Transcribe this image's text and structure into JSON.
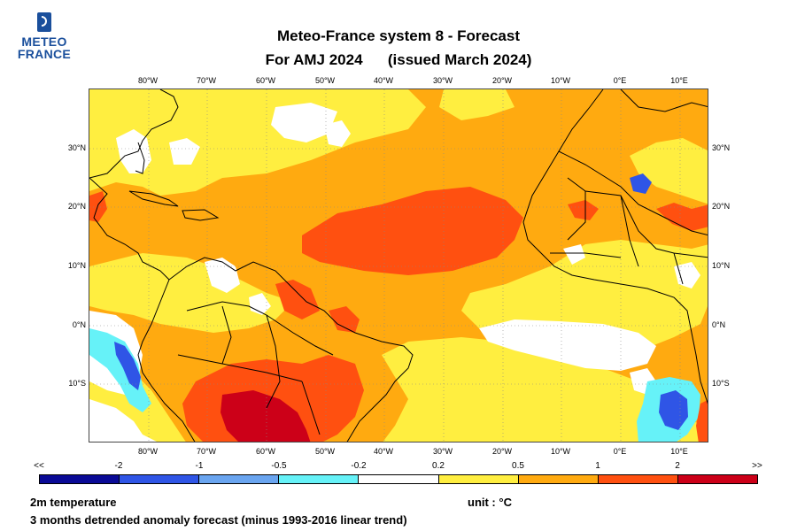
{
  "logo": {
    "line1": "METEO",
    "line2": "FRANCE"
  },
  "header": {
    "title_line1": "Meteo-France system 8  -  Forecast",
    "title_period": "For AMJ 2024",
    "title_issued": "(issued March 2024)"
  },
  "map": {
    "lon_labels": [
      "80°W",
      "70°W",
      "60°W",
      "50°W",
      "40°W",
      "30°W",
      "20°W",
      "10°W",
      "0°E",
      "10°E"
    ],
    "lat_labels": [
      "30°N",
      "20°N",
      "10°N",
      "0°N",
      "10°S"
    ]
  },
  "legend": {
    "labels": [
      "<<",
      "-2",
      "-1",
      "-0.5",
      "-0.2",
      "0.2",
      "0.5",
      "1",
      "2",
      ">>"
    ],
    "colors": [
      "#0a0a96",
      "#2f55e6",
      "#6aa5f0",
      "#66f2f8",
      "#ffffff",
      "#ffee40",
      "#ffaa10",
      "#ff5010",
      "#cc0018"
    ]
  },
  "footer": {
    "variable": "2m temperature",
    "unit": "unit : °C",
    "description": "3 months detrended anomaly forecast (minus 1993-2016 linear trend)"
  },
  "colors": {
    "coast": "#000000",
    "grid": "#888888"
  }
}
